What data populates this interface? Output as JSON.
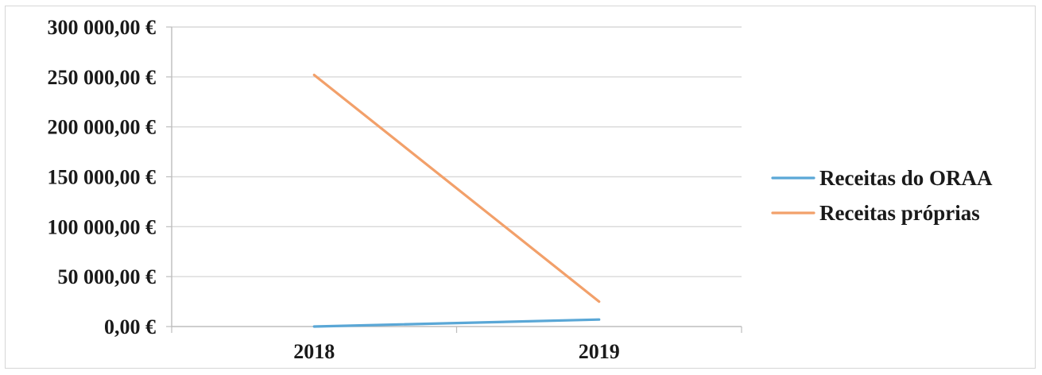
{
  "chart_data": {
    "type": "line",
    "x": [
      "2018",
      "2019"
    ],
    "series": [
      {
        "name": "Receitas do ORAA",
        "values": [
          0,
          7000
        ],
        "color": "#5aa7d6"
      },
      {
        "name": "Receitas próprias",
        "values": [
          252000,
          25000
        ],
        "color": "#f2a06a"
      }
    ],
    "y_ticks": [
      "0,00 €",
      "50 000,00 €",
      "100 000,00 €",
      "150 000,00 €",
      "200 000,00 €",
      "250 000,00 €",
      "300 000,00 €"
    ],
    "ylim": [
      0,
      300000
    ],
    "grid": true,
    "legend_position": "right",
    "title": "",
    "xlabel": "",
    "ylabel": ""
  }
}
